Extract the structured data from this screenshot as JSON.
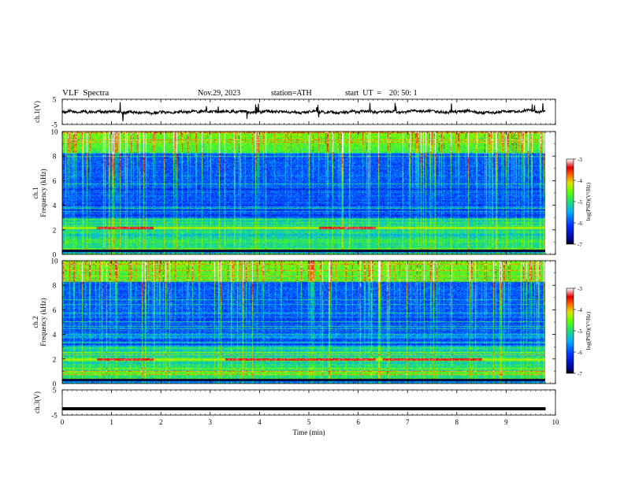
{
  "header": {
    "title": "VLF  Spectra",
    "date": "Nov.29, 2023",
    "station": "station=ATH",
    "start_ut": "start  UT  =    20: 50: 1"
  },
  "chart_data": [
    {
      "type": "line",
      "panel": "ch1-waveform",
      "ylabel": "ch.1(V)",
      "ylim": [
        -5,
        5
      ],
      "yticks": [
        "5",
        "-5"
      ],
      "series": [
        {
          "values_approx": "noisy signal around 0 V"
        }
      ]
    },
    {
      "type": "heatmap",
      "panel": "ch1-spectrogram",
      "ylabel": "ch.1\nFrequency  (kHz)",
      "ylabel_lines": [
        "ch.1",
        "Frequency  (kHz)"
      ],
      "ylim": [
        0,
        10
      ],
      "yticks": [
        "0",
        "2",
        "4",
        "6",
        "8",
        "10"
      ],
      "colorbar": {
        "label": "log(PSD)(V²/Hz)",
        "range": [
          -7,
          -3
        ],
        "ticks": [
          "-3",
          "-4",
          "-5",
          "-6",
          "-7"
        ]
      },
      "features": {
        "strong_line_khz": 2.2,
        "bright_segments_min": [
          [
            0.7,
            1.85
          ],
          [
            5.2,
            6.35
          ]
        ]
      }
    },
    {
      "type": "heatmap",
      "panel": "ch2-spectrogram",
      "ylabel_lines": [
        "ch.2",
        "Frequency  (kHz)"
      ],
      "ylim": [
        0,
        10
      ],
      "yticks": [
        "0",
        "2",
        "4",
        "6",
        "8",
        "10"
      ],
      "colorbar": {
        "label": "log(PSD)(V²/Hz)",
        "range": [
          -7,
          -3
        ],
        "ticks": [
          "-3",
          "-4",
          "-5",
          "-6",
          "-7"
        ]
      },
      "features": {
        "strong_line_khz": 2.0,
        "bright_segments_min": [
          [
            0.7,
            1.85
          ],
          [
            3.3,
            6.35
          ],
          [
            6.5,
            8.5
          ]
        ]
      }
    },
    {
      "type": "line",
      "panel": "ch3-waveform",
      "ylabel": "ch.3(V)",
      "ylim": [
        -5,
        5
      ],
      "yticks": [
        "5",
        "-5"
      ],
      "series": [
        {
          "values_approx": "flat signal near -2.5 V"
        }
      ]
    }
  ],
  "xaxis": {
    "label": "Time  (min)",
    "xlim": [
      0,
      10
    ],
    "ticks": [
      "0",
      "1",
      "2",
      "3",
      "4",
      "5",
      "6",
      "7",
      "8",
      "9",
      "10"
    ],
    "data_end_min": 9.8
  }
}
